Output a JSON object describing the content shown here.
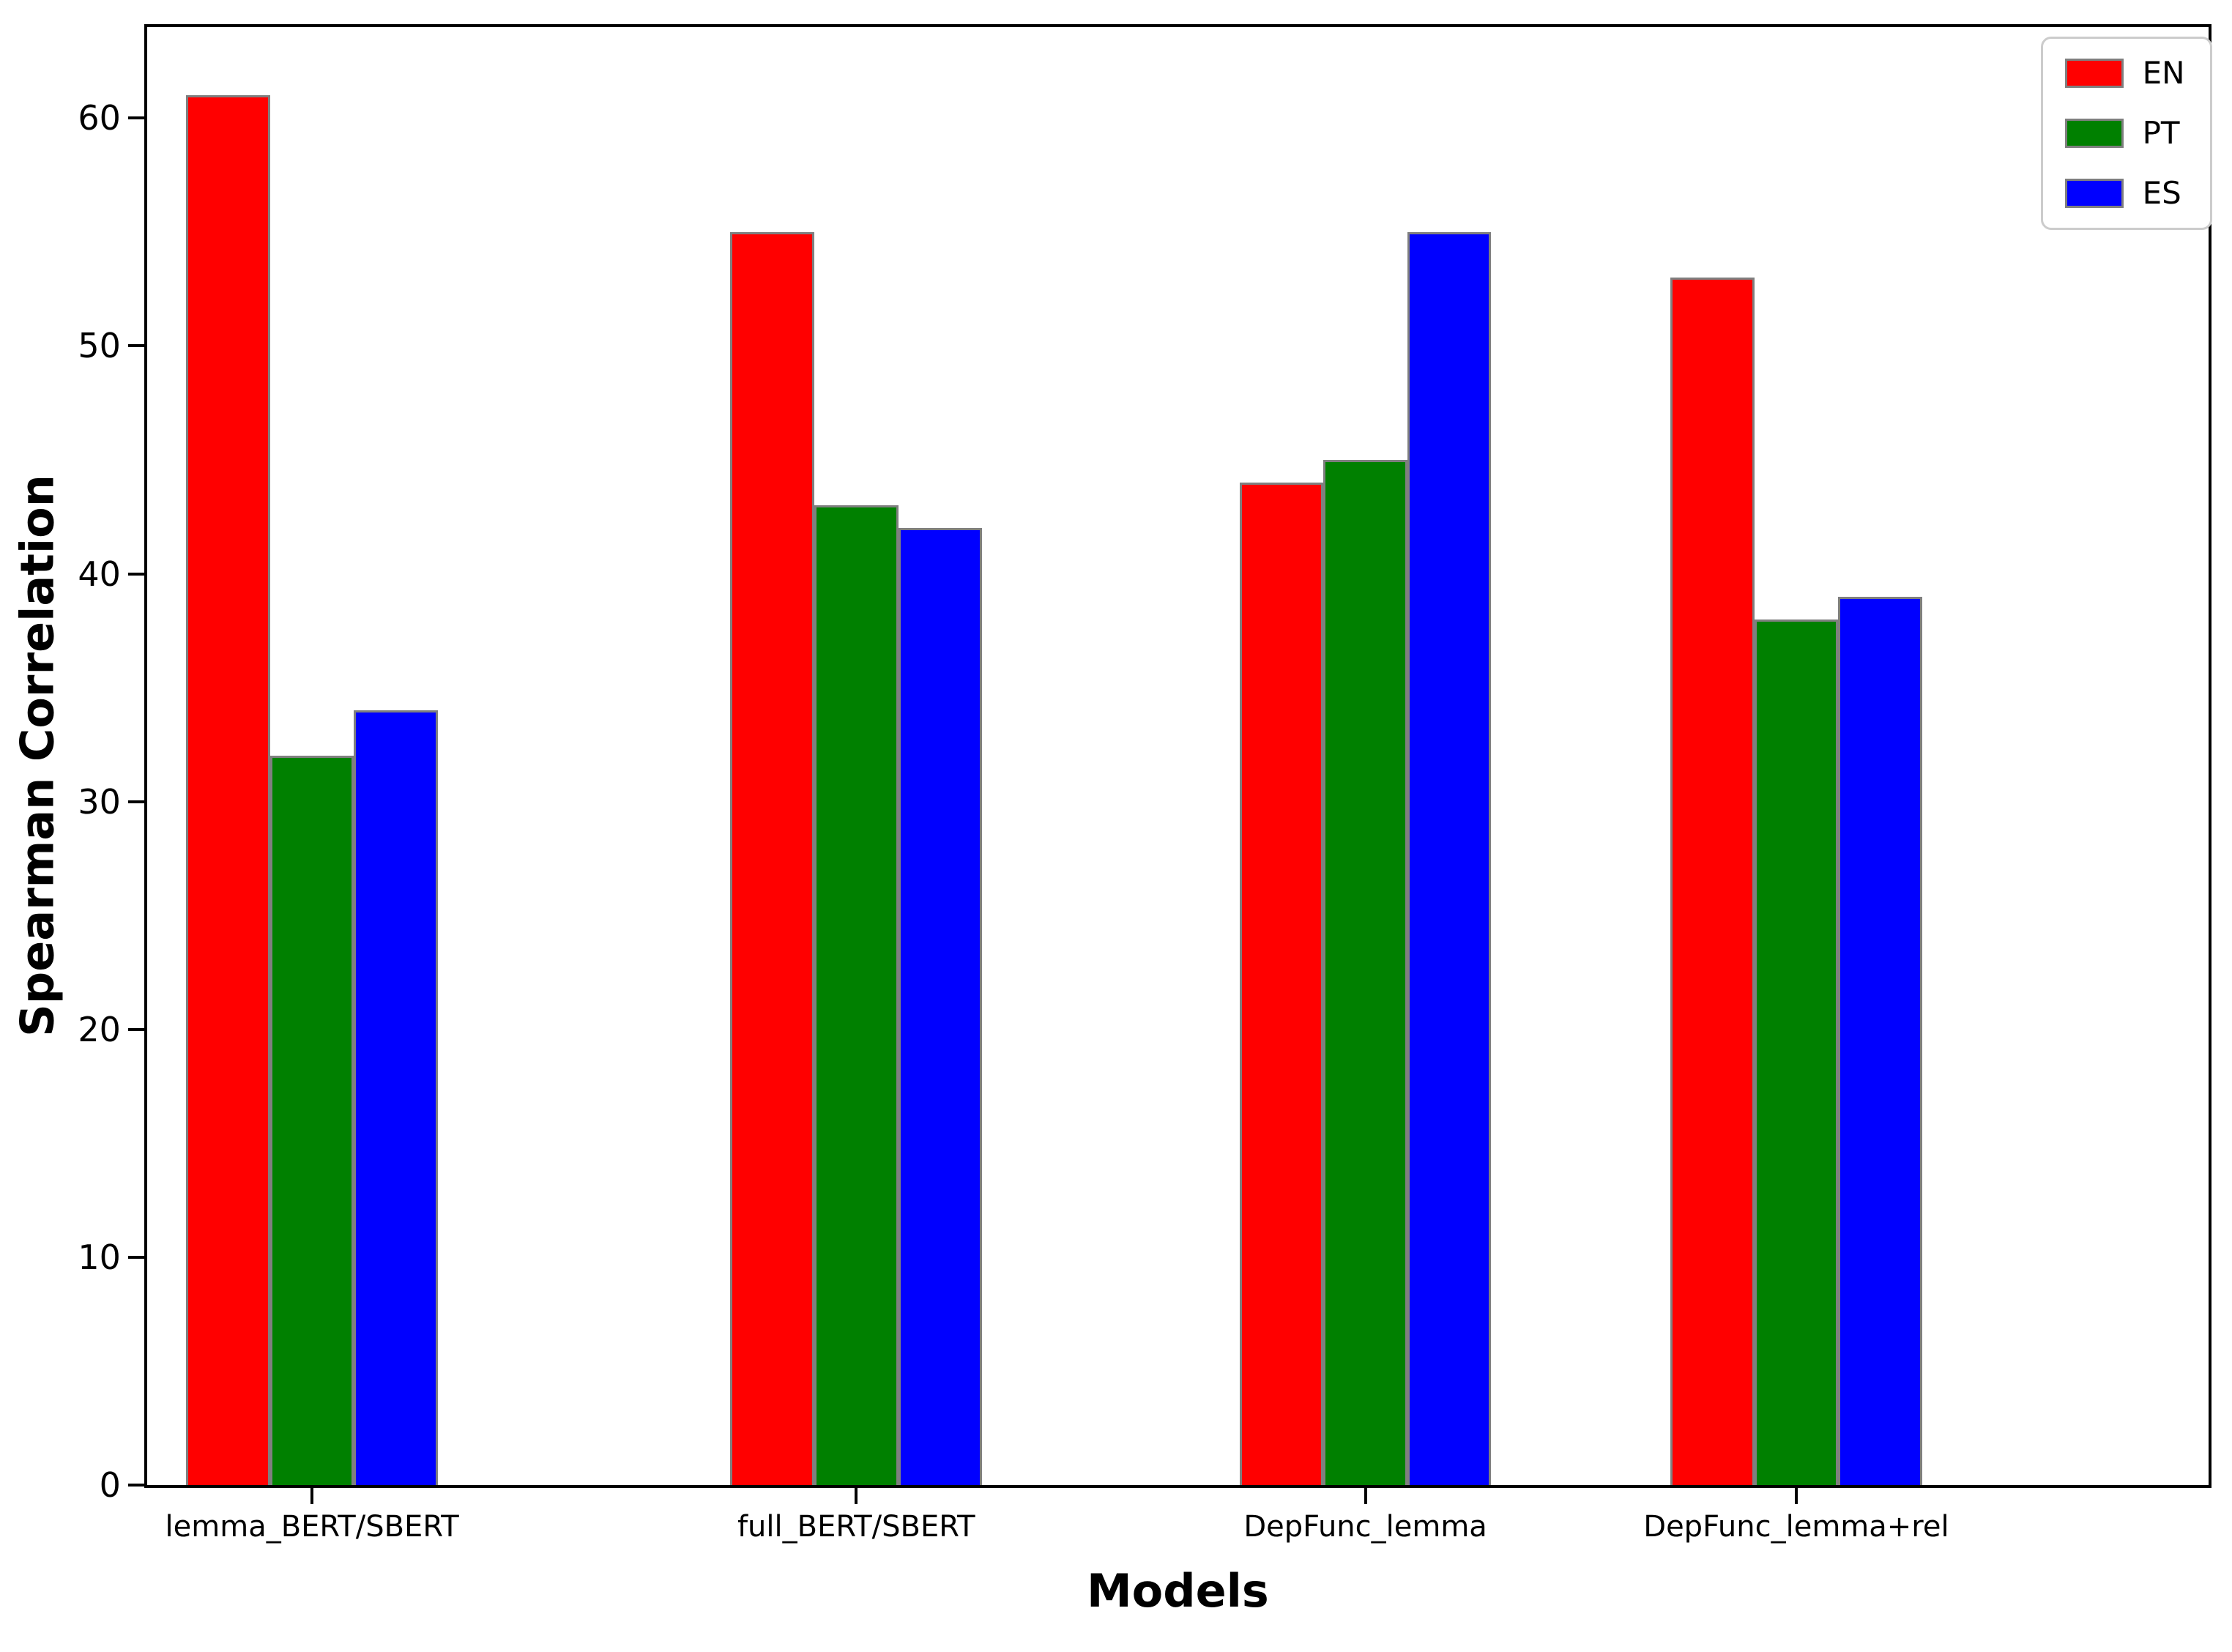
{
  "figure": {
    "xlabel": "Models",
    "ylabel": "Spearman Correlation"
  },
  "chart_data": {
    "type": "bar",
    "title": "",
    "xlabel": "Models",
    "ylabel": "Spearman Correlation",
    "categories": [
      "lemma_BERT/SBERT",
      "full_BERT/SBERT",
      "DepFunc_lemma",
      "DepFunc_lemma+rel"
    ],
    "series": [
      {
        "name": "EN",
        "color": "#ff0000",
        "values": [
          61,
          55,
          44,
          53
        ]
      },
      {
        "name": "PT",
        "color": "#008000",
        "values": [
          32,
          43,
          45,
          38
        ]
      },
      {
        "name": "ES",
        "color": "#0000ff",
        "values": [
          34,
          42,
          55,
          39
        ]
      }
    ],
    "ylim": [
      0,
      64
    ],
    "yticks": [
      0,
      10,
      20,
      30,
      40,
      50,
      60
    ],
    "grid": false,
    "legend_position": "upper right",
    "bar_edge_color": "#7f7f7f",
    "background_color": "#ffffff"
  }
}
